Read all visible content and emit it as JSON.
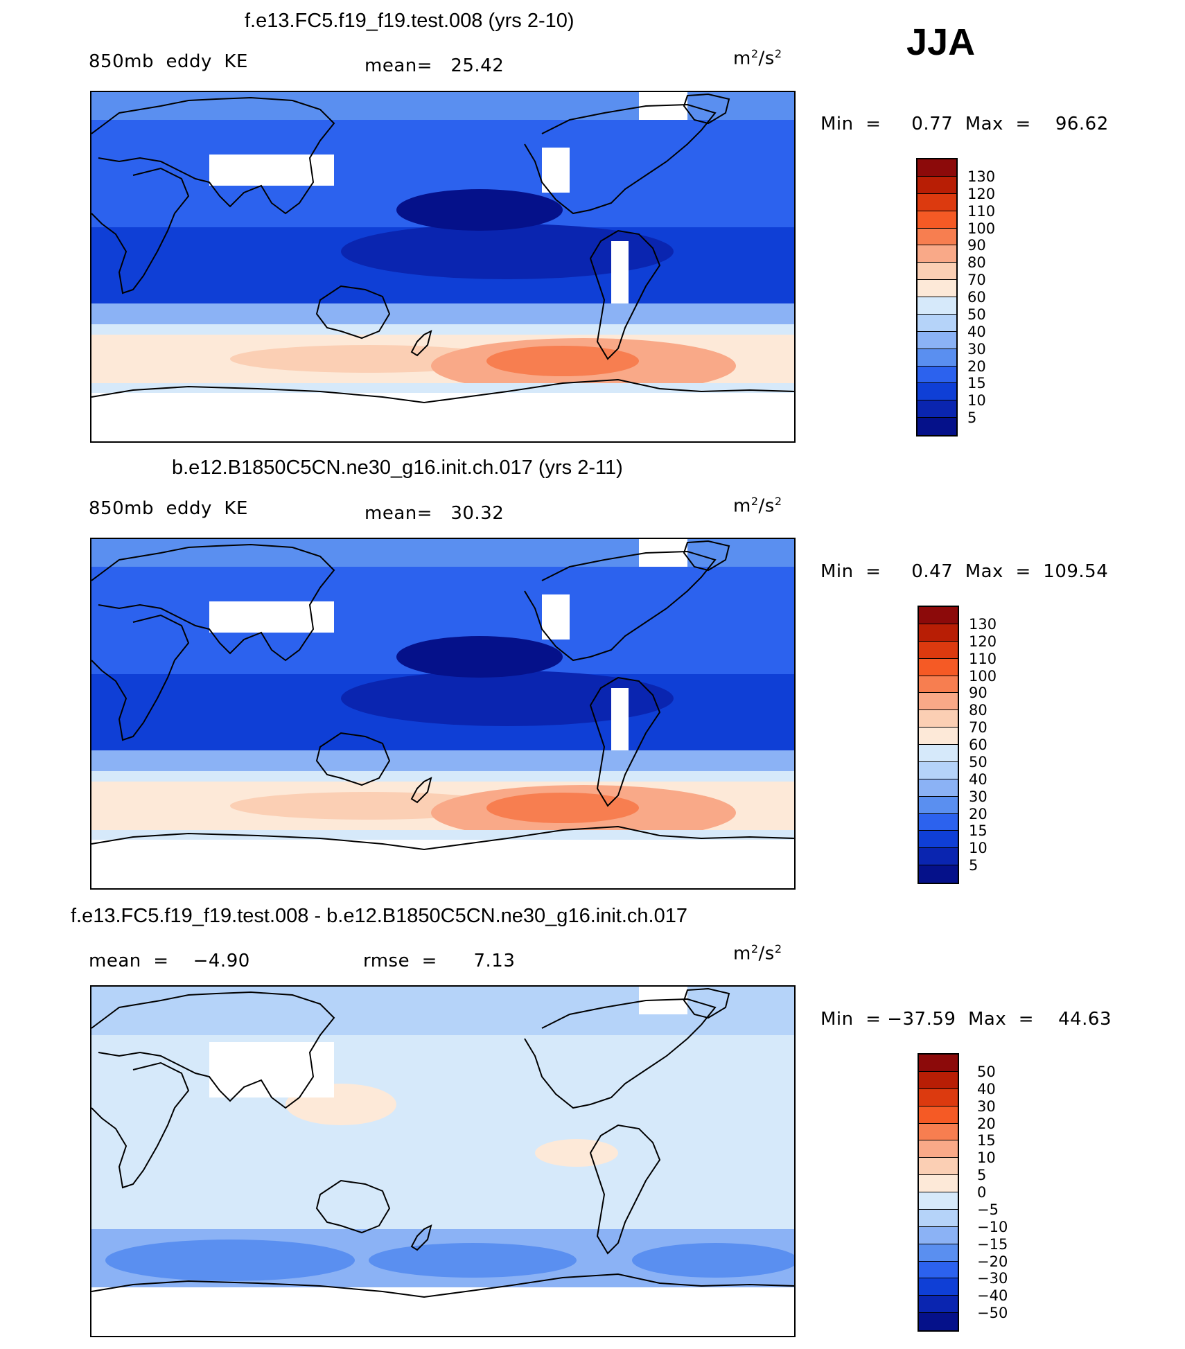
{
  "season": "JJA",
  "panels": [
    {
      "title": "f.e13.FC5.f19_f19.test.008 (yrs 2-10)",
      "left_label": "850mb  eddy  KE",
      "center_label": "mean=   25.42",
      "units": "m²/s²",
      "minmax": "Min  =     0.77  Max  =    96.62",
      "kind": "field"
    },
    {
      "title": "b.e12.B1850C5CN.ne30_g16.init.ch.017 (yrs 2-11)",
      "left_label": "850mb  eddy  KE",
      "center_label": "mean=   30.32",
      "units": "m²/s²",
      "minmax": "Min  =     0.47  Max  =  109.54",
      "kind": "field"
    },
    {
      "title": "f.e13.FC5.f19_f19.test.008 - b.e12.B1850C5CN.ne30_g16.init.ch.017",
      "left_label": "mean  =    −4.90",
      "center_label": "rmse  =      7.13",
      "units": "m²/s²",
      "minmax": "Min  = −37.59  Max  =    44.63",
      "kind": "diff"
    }
  ],
  "chart_data": {
    "type": "heatmap",
    "description_fields": [
      "850mb eddy KE",
      "JJA"
    ],
    "colorbars": [
      {
        "levels": [
          "130",
          "120",
          "110",
          "100",
          "90",
          "80",
          "70",
          "60",
          "50",
          "40",
          "30",
          "20",
          "15",
          "10",
          "5"
        ],
        "colors": [
          "#8c0a0a",
          "#b81e05",
          "#dc3a0f",
          "#f55a25",
          "#f77e50",
          "#f9a988",
          "#fbcfb4",
          "#fde9d8",
          "#d6e9fa",
          "#b5d3f9",
          "#8bb2f5",
          "#5a8ff0",
          "#2c62ee",
          "#0f3fd6",
          "#0a25b0",
          "#05118a"
        ]
      },
      {
        "levels": [
          "130",
          "120",
          "110",
          "100",
          "90",
          "80",
          "70",
          "60",
          "50",
          "40",
          "30",
          "20",
          "15",
          "10",
          "5"
        ],
        "colors": [
          "#8c0a0a",
          "#b81e05",
          "#dc3a0f",
          "#f55a25",
          "#f77e50",
          "#f9a988",
          "#fbcfb4",
          "#fde9d8",
          "#d6e9fa",
          "#b5d3f9",
          "#8bb2f5",
          "#5a8ff0",
          "#2c62ee",
          "#0f3fd6",
          "#0a25b0",
          "#05118a"
        ]
      },
      {
        "levels": [
          "50",
          "40",
          "30",
          "20",
          "15",
          "10",
          "5",
          "0",
          "−5",
          "−10",
          "−15",
          "−20",
          "−30",
          "−40",
          "−50"
        ],
        "colors": [
          "#8c0a0a",
          "#b81e05",
          "#dc3a0f",
          "#f55a25",
          "#f77e50",
          "#f9a988",
          "#fbcfb4",
          "#fde9d8",
          "#d6e9fa",
          "#b5d3f9",
          "#8bb2f5",
          "#5a8ff0",
          "#2c62ee",
          "#0f3fd6",
          "#0a25b0",
          "#05118a"
        ]
      }
    ]
  }
}
